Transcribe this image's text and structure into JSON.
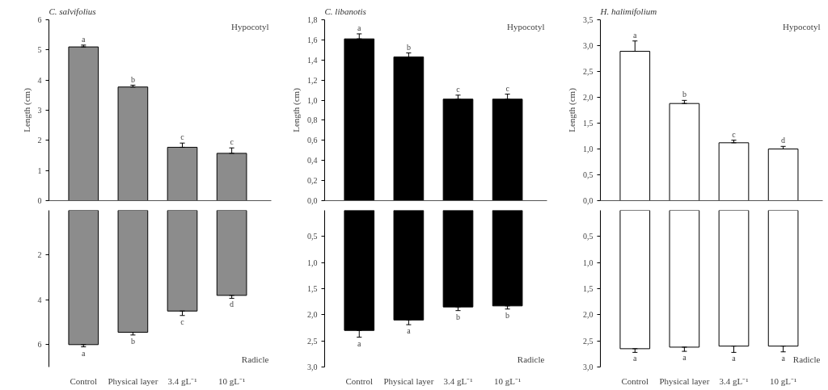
{
  "chart_data": [
    {
      "type": "bar",
      "title": "C. salvifolius",
      "ylabel": "Length (cm)",
      "categories": [
        "Control",
        "Physical layer",
        "3.4 gL⁻¹",
        "10 gL⁻¹"
      ],
      "values": [
        5.1,
        3.77,
        1.77,
        1.57
      ],
      "color": "#8c8c8c",
      "errors": [
        [
          5.1,
          5.16
        ],
        [
          3.77,
          3.83
        ],
        [
          1.77,
          1.91
        ],
        [
          1.57,
          1.75
        ]
      ],
      "ylim": [
        0,
        6
      ],
      "yticks": [
        0,
        1,
        2,
        3,
        4,
        5,
        6
      ],
      "tick_labels": "y",
      "annotations": [
        "Hypocotyl",
        {
          "text": "a",
          "x": "Control",
          "y": 5.16
        },
        {
          "text": "b",
          "x": "Physical layer",
          "y": 3.83
        },
        {
          "text": "c",
          "x": "3.4 gL⁻¹",
          "y": 1.91
        },
        {
          "text": "c",
          "x": "10 gL⁻¹",
          "y": 1.75
        }
      ]
    },
    {
      "type": "bar",
      "categories": [
        "Control",
        "Physical layer",
        "3.4 gL⁻¹",
        "10 gL⁻¹"
      ],
      "values": [
        6.0,
        5.45,
        4.5,
        3.8
      ],
      "color": "#8c8c8c",
      "errors": [
        [
          6.0,
          6.1
        ],
        [
          5.45,
          5.57
        ],
        [
          4.5,
          4.7
        ],
        [
          3.8,
          3.93
        ]
      ],
      "ylim": [
        7,
        0
      ],
      "yticks": [
        2,
        4,
        6
      ],
      "annotations": [
        "Radicle",
        {
          "text": "a",
          "x": "Control",
          "y": 6.1
        },
        {
          "text": "b",
          "x": "Physical layer",
          "y": 5.57
        },
        {
          "text": "c",
          "x": "3.4 gL⁻¹",
          "y": 4.7
        },
        {
          "text": "d",
          "x": "10 gL⁻¹",
          "y": 3.93
        }
      ]
    },
    {
      "type": "bar",
      "title": "C. libanotis",
      "ylabel": "Length (cm)",
      "categories": [
        "Control",
        "Physical layer",
        "3.4 gL⁻¹",
        "10 gL⁻¹"
      ],
      "values": [
        1.61,
        1.43,
        1.01,
        1.01
      ],
      "color": "#000000",
      "errors": [
        [
          1.61,
          1.66
        ],
        [
          1.43,
          1.47
        ],
        [
          1.01,
          1.05
        ],
        [
          1.01,
          1.06
        ]
      ],
      "ylim": [
        0,
        1.8
      ],
      "yticks": [
        {
          "value": 0,
          "label": "0,0"
        },
        {
          "value": 0.2,
          "label": "0,2"
        },
        {
          "value": 0.4,
          "label": "0,4"
        },
        {
          "value": 0.6,
          "label": "0,6"
        },
        {
          "value": 0.8,
          "label": "0,8"
        },
        {
          "value": 1.0,
          "label": "1,0"
        },
        {
          "value": 1.2,
          "label": "1,2"
        },
        {
          "value": 1.4,
          "label": "1,4"
        },
        {
          "value": 1.6,
          "label": "1,6"
        },
        {
          "value": 1.8,
          "label": "1,8"
        }
      ],
      "tick_labels": "y",
      "annotations": [
        "Hypocotyl",
        {
          "text": "a",
          "x": "Control",
          "y": 1.66
        },
        {
          "text": "b",
          "x": "Physical layer",
          "y": 1.47
        },
        {
          "text": "c",
          "x": "3.4 gL⁻¹",
          "y": 1.05
        },
        {
          "text": "c",
          "x": "10 gL⁻¹",
          "y": 1.06
        }
      ]
    },
    {
      "type": "bar",
      "categories": [
        "Control",
        "Physical layer",
        "3.4 gL⁻¹",
        "10 gL⁻¹"
      ],
      "values": [
        2.3,
        2.1,
        1.85,
        1.83
      ],
      "color": "#000000",
      "errors": [
        [
          2.3,
          2.43
        ],
        [
          2.1,
          2.19
        ],
        [
          1.85,
          1.92
        ],
        [
          1.83,
          1.89
        ]
      ],
      "ylim": [
        3,
        0
      ],
      "yticks": [
        {
          "value": 0.5,
          "label": "0,5"
        },
        {
          "value": 1.0,
          "label": "1,0"
        },
        {
          "value": 1.5,
          "label": "1,5"
        },
        {
          "value": 2.0,
          "label": "2,0"
        },
        {
          "value": 2.5,
          "label": "2,5"
        },
        {
          "value": 3.0,
          "label": "3,0"
        }
      ],
      "annotations": [
        "Radicle",
        {
          "text": "a",
          "x": "Control",
          "y": 2.43
        },
        {
          "text": "a",
          "x": "Physical layer",
          "y": 2.19
        },
        {
          "text": "b",
          "x": "3.4 gL⁻¹",
          "y": 1.92
        },
        {
          "text": "b",
          "x": "10 gL⁻¹",
          "y": 1.89
        }
      ]
    },
    {
      "type": "bar",
      "title": "H. halimifolium",
      "ylabel": "Length (cm)",
      "categories": [
        "Control",
        "Physical layer",
        "3.4 gL⁻¹",
        "10 gL⁻¹"
      ],
      "values": [
        2.89,
        1.88,
        1.12,
        1.0
      ],
      "color": "#ffffff",
      "errors": [
        [
          2.89,
          3.09
        ],
        [
          1.88,
          1.94
        ],
        [
          1.12,
          1.17
        ],
        [
          1.0,
          1.05
        ]
      ],
      "ylim": [
        0,
        3.5
      ],
      "yticks": [
        {
          "value": 0,
          "label": "0,0"
        },
        {
          "value": 0.5,
          "label": "0,5"
        },
        {
          "value": 1.0,
          "label": "1,0"
        },
        {
          "value": 1.5,
          "label": "1,5"
        },
        {
          "value": 2.0,
          "label": "2,0"
        },
        {
          "value": 2.5,
          "label": "2,5"
        },
        {
          "value": 3.0,
          "label": "3,0"
        },
        {
          "value": 3.5,
          "label": "3,5"
        }
      ],
      "tick_labels": "y",
      "annotations": [
        "Hypocotyl",
        {
          "text": "a",
          "x": "Control",
          "y": 3.09
        },
        {
          "text": "b",
          "x": "Physical layer",
          "y": 1.94
        },
        {
          "text": "c",
          "x": "3.4 gL⁻¹",
          "y": 1.17
        },
        {
          "text": "d",
          "x": "10 gL⁻¹",
          "y": 1.05
        }
      ]
    },
    {
      "type": "bar",
      "categories": [
        "Control",
        "Physical layer",
        "3.4 gL⁻¹",
        "10 gL⁻¹"
      ],
      "values": [
        2.65,
        2.62,
        2.6,
        2.6
      ],
      "color": "#ffffff",
      "errors": [
        [
          2.65,
          2.72
        ],
        [
          2.62,
          2.7
        ],
        [
          2.6,
          2.72
        ],
        [
          2.6,
          2.71
        ]
      ],
      "ylim": [
        3,
        0
      ],
      "yticks": [
        {
          "value": 0.5,
          "label": "0,5"
        },
        {
          "value": 1.0,
          "label": "1,0"
        },
        {
          "value": 1.5,
          "label": "1,5"
        },
        {
          "value": 2.0,
          "label": "2,0"
        },
        {
          "value": 2.5,
          "label": "2,5"
        },
        {
          "value": 3.0,
          "label": "3,0"
        }
      ],
      "annotations": [
        "Radicle",
        {
          "text": "a",
          "x": "Control",
          "y": 2.72
        },
        {
          "text": "a",
          "x": "Physical layer",
          "y": 2.7
        },
        {
          "text": "a",
          "x": "3.4 gL⁻¹",
          "y": 2.72
        },
        {
          "text": "a",
          "x": "10 gL⁻¹",
          "y": 2.71
        }
      ]
    }
  ]
}
